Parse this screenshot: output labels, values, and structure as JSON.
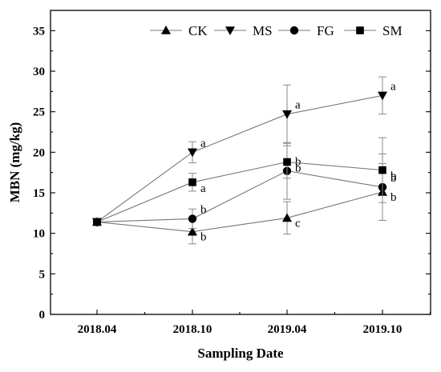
{
  "chart_data": {
    "type": "line",
    "xlabel": "Sampling Date",
    "ylabel": "MBN (mg/kg)",
    "categories": [
      "2018.04",
      "2018.10",
      "2019.04",
      "2019.10"
    ],
    "ylim": [
      0,
      37.5
    ],
    "yticks": [
      0,
      5,
      10,
      15,
      20,
      25,
      30,
      35
    ],
    "legend": "top-right",
    "series": [
      {
        "name": "CK",
        "marker": "triangle-up",
        "values": [
          11.4,
          10.2,
          11.9,
          15.1
        ],
        "errors": [
          0,
          1.5,
          2.0,
          3.5
        ],
        "letters": [
          "",
          "b",
          "c",
          "b"
        ]
      },
      {
        "name": "MS",
        "marker": "triangle-down",
        "values": [
          11.4,
          20.0,
          24.7,
          27.0
        ],
        "errors": [
          0,
          1.3,
          3.6,
          2.3
        ],
        "letters": [
          "",
          "a",
          "a",
          "a"
        ]
      },
      {
        "name": "FG",
        "marker": "circle",
        "values": [
          11.4,
          11.8,
          17.7,
          15.7
        ],
        "errors": [
          0,
          1.2,
          3.5,
          4.1
        ],
        "letters": [
          "",
          "b",
          "b",
          "b"
        ]
      },
      {
        "name": "SM",
        "marker": "square",
        "values": [
          11.4,
          16.3,
          18.8,
          17.8
        ],
        "errors": [
          0,
          1.1,
          2.0,
          4.0
        ],
        "letters": [
          "",
          "a",
          "b",
          "b"
        ]
      }
    ]
  }
}
